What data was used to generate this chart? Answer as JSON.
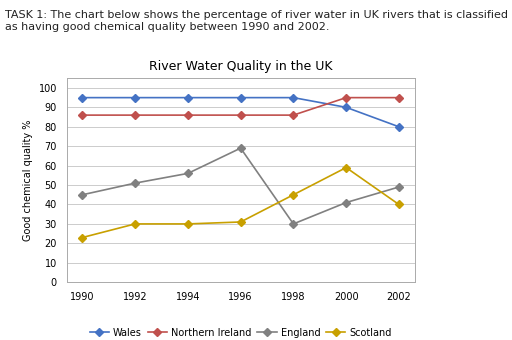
{
  "task_text": "TASK 1: The chart below shows the percentage of river water in UK rivers that is classified\nas having good chemical quality between 1990 and 2002.",
  "title": "River Water Quality in the UK",
  "ylabel": "Good chemical quality %",
  "years": [
    1990,
    1992,
    1994,
    1996,
    1998,
    2000,
    2002
  ],
  "series": {
    "Wales": {
      "values": [
        95,
        95,
        95,
        95,
        95,
        90,
        80
      ],
      "color": "#4472C4",
      "marker": "D",
      "markersize": 4
    },
    "Northern Ireland": {
      "values": [
        86,
        86,
        86,
        86,
        86,
        95,
        95
      ],
      "color": "#C0504D",
      "marker": "D",
      "markersize": 4
    },
    "England": {
      "values": [
        45,
        51,
        56,
        69,
        30,
        41,
        49
      ],
      "color": "#808080",
      "marker": "D",
      "markersize": 4
    },
    "Scotland": {
      "values": [
        23,
        30,
        30,
        31,
        45,
        59,
        40
      ],
      "color": "#C8A000",
      "marker": "D",
      "markersize": 4
    }
  },
  "ylim": [
    0,
    105
  ],
  "yticks": [
    0,
    10,
    20,
    30,
    40,
    50,
    60,
    70,
    80,
    90,
    100
  ],
  "xticks": [
    1990,
    1992,
    1994,
    1996,
    1998,
    2000,
    2002
  ],
  "background_color": "#ffffff",
  "plot_bg_color": "#ffffff",
  "grid_color": "#cccccc",
  "title_fontsize": 9,
  "task_fontsize": 8,
  "axis_label_fontsize": 7,
  "tick_fontsize": 7,
  "legend_fontsize": 7
}
